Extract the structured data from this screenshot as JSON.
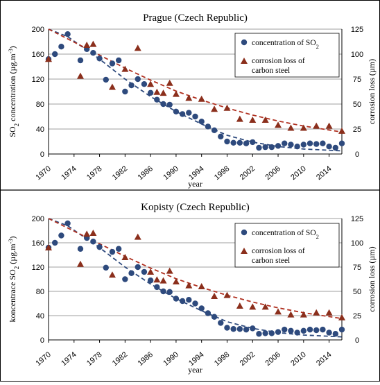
{
  "chart_data": [
    {
      "type": "scatter",
      "title": "Prague (Czech Republic)",
      "xlabel": "year",
      "ylabel": "SO2 concentration (µg.m-3)",
      "y2label": "corrosion  loss (µm)",
      "xlim": [
        1970,
        2016
      ],
      "ylim": [
        0,
        200
      ],
      "y2lim": [
        0,
        125
      ],
      "xticks": [
        "1970",
        "1974",
        "1978",
        "1982",
        "1986",
        "1990",
        "1994",
        "1998",
        "2002",
        "2006",
        "2010",
        "2014"
      ],
      "yticks": [
        "0",
        "40",
        "80",
        "120",
        "160",
        "200"
      ],
      "y2ticks": [
        "0",
        "25",
        "50",
        "75",
        "100",
        "125"
      ],
      "grid": true,
      "legend_position": "top-right",
      "legend": [
        "concentration of SO2",
        "corrosion loss of carbon steel"
      ],
      "series": [
        {
          "name": "concentration of SO2",
          "marker": "circle",
          "color": "#2e4a7d",
          "axis": "left",
          "x": [
            1970,
            1971,
            1972,
            1973,
            1975,
            1976,
            1977,
            1978,
            1979,
            1980,
            1981,
            1982,
            1983,
            1984,
            1985,
            1986,
            1987,
            1988,
            1989,
            1990,
            1991,
            1992,
            1993,
            1994,
            1995,
            1996,
            1997,
            1998,
            1999,
            2000,
            2001,
            2002,
            2003,
            2004,
            2005,
            2006,
            2007,
            2008,
            2009,
            2010,
            2011,
            2012,
            2013,
            2014,
            2015,
            2016
          ],
          "y": [
            152,
            160,
            172,
            192,
            150,
            168,
            162,
            153,
            119,
            145,
            150,
            100,
            110,
            120,
            112,
            98,
            87,
            80,
            79,
            68,
            64,
            66,
            60,
            52,
            44,
            38,
            28,
            20,
            18,
            18,
            17,
            19,
            10,
            11,
            11,
            13,
            17,
            15,
            12,
            15,
            17,
            16,
            17,
            12,
            10,
            17
          ]
        },
        {
          "name": "corrosion loss of carbon steel",
          "marker": "triangle",
          "color": "#8b2f1c",
          "axis": "right",
          "x": [
            1970,
            1975,
            1976,
            1977,
            1980,
            1982,
            1984,
            1986,
            1987,
            1988,
            1989,
            1990,
            1992,
            1994,
            1996,
            1998,
            2000,
            2002,
            2004,
            2006,
            2008,
            2010,
            2012,
            2014,
            2016
          ],
          "y": [
            95,
            78,
            109,
            110,
            67,
            85,
            106,
            70,
            62,
            61,
            71,
            60,
            56,
            55,
            45,
            46,
            35,
            34,
            34,
            29,
            26,
            26,
            28,
            28,
            23
          ]
        }
      ],
      "trendlines": [
        {
          "series": "concentration of SO2",
          "style": "dashed",
          "color": "#2e4a7d",
          "x": [
            1970,
            1973,
            1978,
            1982,
            1986,
            1990,
            1994,
            1998,
            2002,
            2006,
            2010,
            2014,
            2016
          ],
          "y": [
            200,
            188,
            152,
            120,
            92,
            68,
            48,
            30,
            19,
            12,
            8,
            6,
            5
          ]
        },
        {
          "series": "corrosion loss of carbon steel",
          "style": "dashed",
          "color": "#b03020",
          "x": [
            1970,
            1974,
            1978,
            1982,
            1986,
            1990,
            1994,
            1998,
            2002,
            2006,
            2010,
            2014,
            2016
          ],
          "y": [
            125,
            112,
            99,
            86,
            74,
            63,
            54,
            46,
            39,
            33,
            28,
            24,
            22
          ]
        }
      ]
    },
    {
      "type": "scatter",
      "title": "Kopisty (Czech Republic)",
      "xlabel": "year",
      "ylabel": "koncentrace SO2 (µg.m-3)",
      "y2label": "corrosion loss (µm)",
      "xlim": [
        1970,
        2016
      ],
      "ylim": [
        0,
        200
      ],
      "y2lim": [
        0,
        125
      ],
      "xticks": [
        "1970",
        "1974",
        "1978",
        "1982",
        "1986",
        "1990",
        "1994",
        "1998",
        "2002",
        "2006",
        "2010",
        "2014"
      ],
      "yticks": [
        "0",
        "40",
        "80",
        "120",
        "160",
        "200"
      ],
      "y2ticks": [
        "0",
        "25",
        "50",
        "75",
        "100",
        "125"
      ],
      "grid": true,
      "legend_position": "top-right",
      "legend": [
        "concentration of SO2",
        "corrosion loss of carbon steel"
      ],
      "series": [
        {
          "name": "concentration of SO2",
          "marker": "circle",
          "color": "#2e4a7d",
          "axis": "left",
          "x": [
            1970,
            1971,
            1972,
            1973,
            1975,
            1976,
            1977,
            1978,
            1979,
            1980,
            1981,
            1982,
            1983,
            1984,
            1985,
            1986,
            1987,
            1988,
            1989,
            1990,
            1991,
            1992,
            1993,
            1994,
            1995,
            1996,
            1997,
            1998,
            1999,
            2000,
            2001,
            2002,
            2003,
            2004,
            2005,
            2006,
            2007,
            2008,
            2009,
            2010,
            2011,
            2012,
            2013,
            2014,
            2015,
            2016
          ],
          "y": [
            152,
            160,
            172,
            192,
            150,
            168,
            162,
            153,
            119,
            145,
            150,
            100,
            110,
            120,
            112,
            98,
            87,
            80,
            79,
            68,
            64,
            66,
            60,
            52,
            44,
            38,
            28,
            20,
            18,
            18,
            17,
            19,
            10,
            11,
            11,
            13,
            17,
            15,
            12,
            15,
            17,
            16,
            17,
            12,
            10,
            17
          ]
        },
        {
          "name": "corrosion loss of carbon steel",
          "marker": "triangle",
          "color": "#8b2f1c",
          "axis": "right",
          "x": [
            1970,
            1975,
            1976,
            1977,
            1980,
            1982,
            1984,
            1986,
            1987,
            1988,
            1989,
            1990,
            1992,
            1994,
            1996,
            1998,
            2000,
            2002,
            2004,
            2006,
            2008,
            2010,
            2012,
            2014,
            2016
          ],
          "y": [
            95,
            78,
            109,
            110,
            67,
            85,
            106,
            70,
            62,
            61,
            71,
            60,
            56,
            55,
            45,
            46,
            35,
            34,
            34,
            29,
            26,
            26,
            28,
            28,
            23
          ]
        }
      ],
      "trendlines": [
        {
          "series": "concentration of SO2",
          "style": "dashed",
          "color": "#2e4a7d",
          "x": [
            1970,
            1973,
            1978,
            1982,
            1986,
            1990,
            1994,
            1998,
            2002,
            2006,
            2010,
            2014,
            2016
          ],
          "y": [
            200,
            188,
            152,
            120,
            92,
            68,
            48,
            30,
            19,
            12,
            8,
            6,
            5
          ]
        },
        {
          "series": "corrosion loss of carbon steel",
          "style": "dashed",
          "color": "#b03020",
          "x": [
            1970,
            1974,
            1978,
            1982,
            1986,
            1990,
            1994,
            1998,
            2002,
            2006,
            2010,
            2014,
            2016
          ],
          "y": [
            125,
            112,
            99,
            86,
            74,
            63,
            54,
            46,
            39,
            33,
            28,
            24,
            22
          ]
        }
      ]
    }
  ]
}
